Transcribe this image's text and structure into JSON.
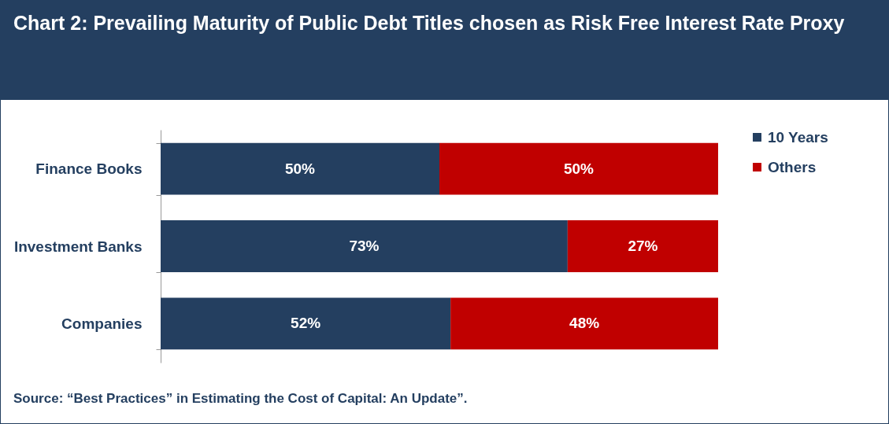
{
  "chart_data": {
    "type": "bar",
    "orientation": "horizontal",
    "stacked": true,
    "title": "Chart 2: Prevailing Maturity of Public Debt Titles chosen as Risk Free Interest Rate Proxy",
    "categories": [
      "Finance Books",
      "Investment Banks",
      "Companies"
    ],
    "series": [
      {
        "name": "10 Years",
        "color": "#243f60",
        "values": [
          50,
          73,
          52
        ],
        "value_labels": [
          "50%",
          "73%",
          "52%"
        ]
      },
      {
        "name": "Others",
        "color": "#c00000",
        "values": [
          50,
          27,
          48
        ],
        "value_labels": [
          "50%",
          "27%",
          "48%"
        ]
      }
    ],
    "tick_labels": "y",
    "legend": "right",
    "grid": false,
    "annotations": [
      "Source: “Best Practices” in Estimating the Cost of Capital: An Update”."
    ]
  }
}
